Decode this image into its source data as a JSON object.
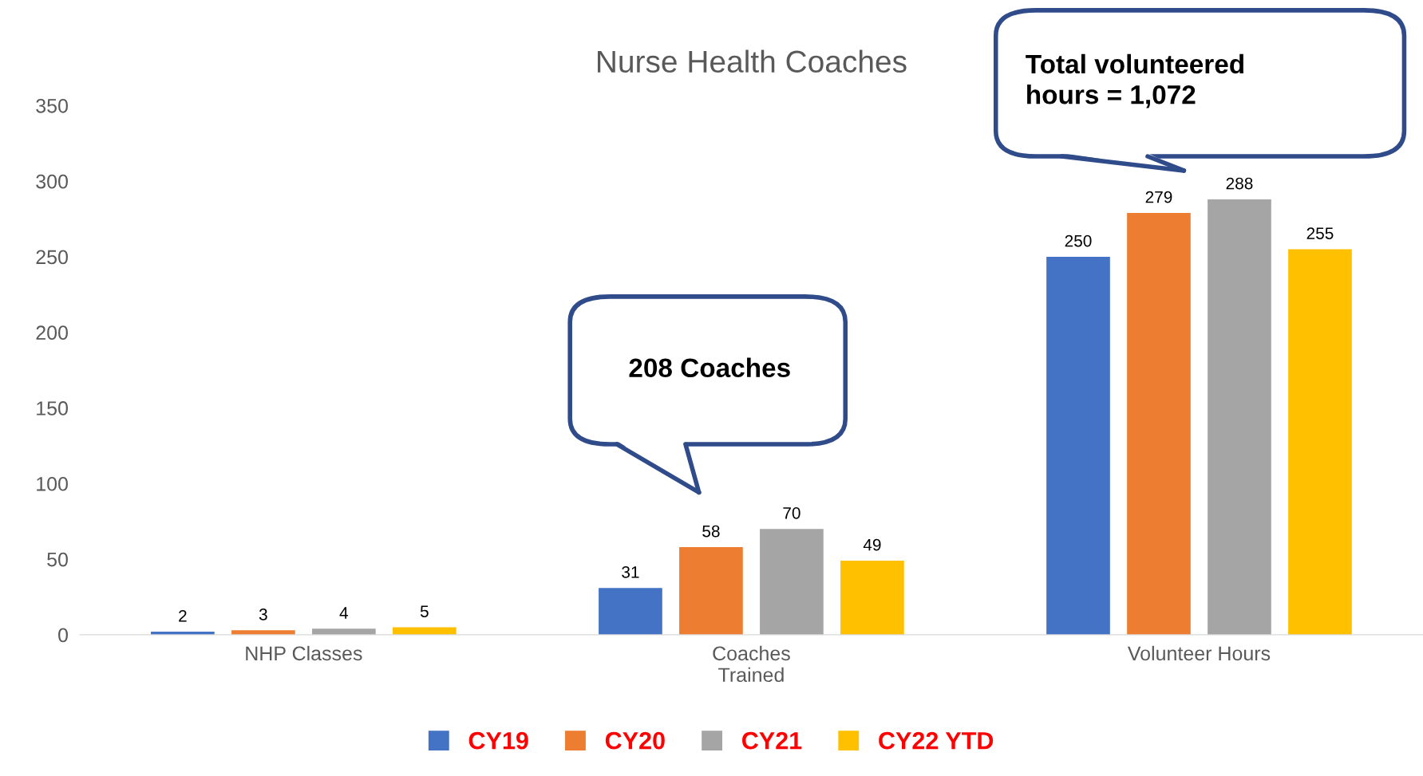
{
  "chart_data": {
    "type": "bar",
    "title": "Nurse Health Coaches",
    "categories": [
      "NHP Classes",
      "Coaches\nTrained",
      "Volunteer Hours"
    ],
    "series": [
      {
        "name": "CY19",
        "color": "#4472c4",
        "values": [
          2,
          31,
          250
        ]
      },
      {
        "name": "CY20",
        "color": "#ed7d31",
        "values": [
          3,
          58,
          279
        ]
      },
      {
        "name": "CY21",
        "color": "#a5a5a5",
        "values": [
          4,
          70,
          288
        ]
      },
      {
        "name": "CY22 YTD",
        "color": "#ffc000",
        "values": [
          5,
          49,
          255
        ]
      }
    ],
    "ylim": [
      0,
      350
    ],
    "yticks": [
      0,
      50,
      100,
      150,
      200,
      250,
      300,
      350
    ],
    "data_labels": true,
    "grid": false,
    "legend": "bottom",
    "annotations": [
      "208 Coaches",
      "Total volunteered\nhours = 1,072"
    ]
  }
}
